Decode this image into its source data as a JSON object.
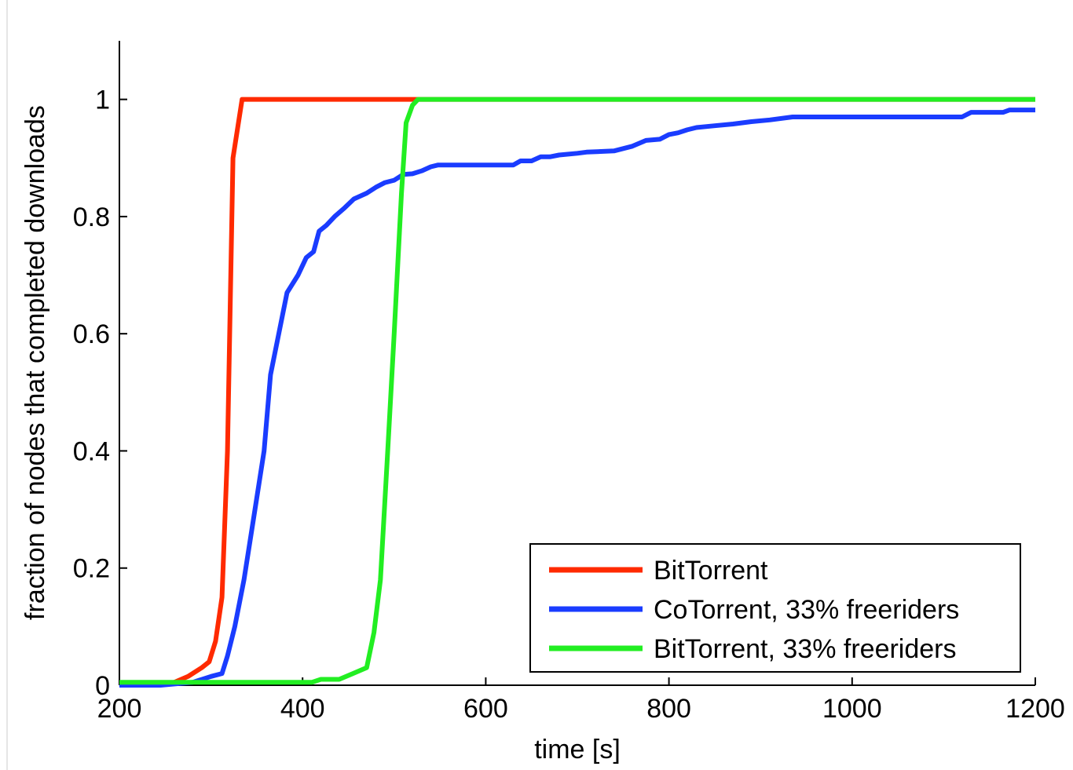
{
  "chart_data": {
    "type": "line",
    "title": "",
    "xlabel": "time [s]",
    "ylabel": "fraction of nodes that completed downloads",
    "xlim": [
      200,
      1200
    ],
    "ylim": [
      0,
      1.1
    ],
    "xticks": [
      200,
      400,
      600,
      800,
      1000,
      1200
    ],
    "xtick_labels": [
      "200",
      "400",
      "600",
      "800",
      "1000",
      "1200"
    ],
    "yticks": [
      0,
      0.2,
      0.4,
      0.6,
      0.8,
      1
    ],
    "ytick_labels": [
      "0",
      "0.2",
      "0.4",
      "0.6",
      "0.8",
      "1"
    ],
    "grid": false,
    "legend_position": "bottom-right",
    "series": [
      {
        "name": "BitTorrent",
        "color": "#ff2a00",
        "points": [
          [
            200,
            0
          ],
          [
            240,
            0
          ],
          [
            260,
            0.005
          ],
          [
            275,
            0.015
          ],
          [
            290,
            0.03
          ],
          [
            298,
            0.04
          ],
          [
            305,
            0.075
          ],
          [
            312,
            0.15
          ],
          [
            318,
            0.4
          ],
          [
            324,
            0.9
          ],
          [
            334,
            1.0
          ],
          [
            1200,
            1.0
          ]
        ]
      },
      {
        "name": "CoTorrent, 33% freeriders",
        "color": "#1a3cff",
        "points": [
          [
            200,
            0
          ],
          [
            245,
            0
          ],
          [
            280,
            0.005
          ],
          [
            300,
            0.015
          ],
          [
            312,
            0.02
          ],
          [
            318,
            0.05
          ],
          [
            326,
            0.1
          ],
          [
            336,
            0.18
          ],
          [
            348,
            0.3
          ],
          [
            358,
            0.4
          ],
          [
            365,
            0.53
          ],
          [
            374,
            0.6
          ],
          [
            383,
            0.67
          ],
          [
            395,
            0.7
          ],
          [
            404,
            0.73
          ],
          [
            412,
            0.74
          ],
          [
            418,
            0.775
          ],
          [
            426,
            0.785
          ],
          [
            435,
            0.8
          ],
          [
            446,
            0.815
          ],
          [
            456,
            0.83
          ],
          [
            470,
            0.84
          ],
          [
            480,
            0.85
          ],
          [
            490,
            0.858
          ],
          [
            500,
            0.862
          ],
          [
            510,
            0.872
          ],
          [
            520,
            0.873
          ],
          [
            530,
            0.878
          ],
          [
            540,
            0.885
          ],
          [
            548,
            0.888
          ],
          [
            630,
            0.888
          ],
          [
            638,
            0.895
          ],
          [
            650,
            0.895
          ],
          [
            660,
            0.902
          ],
          [
            670,
            0.902
          ],
          [
            680,
            0.905
          ],
          [
            700,
            0.908
          ],
          [
            710,
            0.91
          ],
          [
            740,
            0.912
          ],
          [
            760,
            0.92
          ],
          [
            775,
            0.93
          ],
          [
            790,
            0.932
          ],
          [
            800,
            0.94
          ],
          [
            810,
            0.943
          ],
          [
            820,
            0.948
          ],
          [
            830,
            0.952
          ],
          [
            850,
            0.955
          ],
          [
            870,
            0.958
          ],
          [
            890,
            0.962
          ],
          [
            910,
            0.965
          ],
          [
            935,
            0.97
          ],
          [
            1120,
            0.97
          ],
          [
            1130,
            0.978
          ],
          [
            1165,
            0.978
          ],
          [
            1172,
            0.982
          ],
          [
            1200,
            0.982
          ]
        ]
      },
      {
        "name": "BitTorrent, 33% freeriders",
        "color": "#22ee22",
        "points": [
          [
            200,
            0.005
          ],
          [
            410,
            0.005
          ],
          [
            420,
            0.01
          ],
          [
            440,
            0.01
          ],
          [
            455,
            0.02
          ],
          [
            470,
            0.03
          ],
          [
            478,
            0.09
          ],
          [
            485,
            0.18
          ],
          [
            493,
            0.4
          ],
          [
            500,
            0.6
          ],
          [
            508,
            0.84
          ],
          [
            513,
            0.96
          ],
          [
            520,
            0.99
          ],
          [
            526,
            1.0
          ],
          [
            1200,
            1.0
          ]
        ]
      }
    ]
  }
}
